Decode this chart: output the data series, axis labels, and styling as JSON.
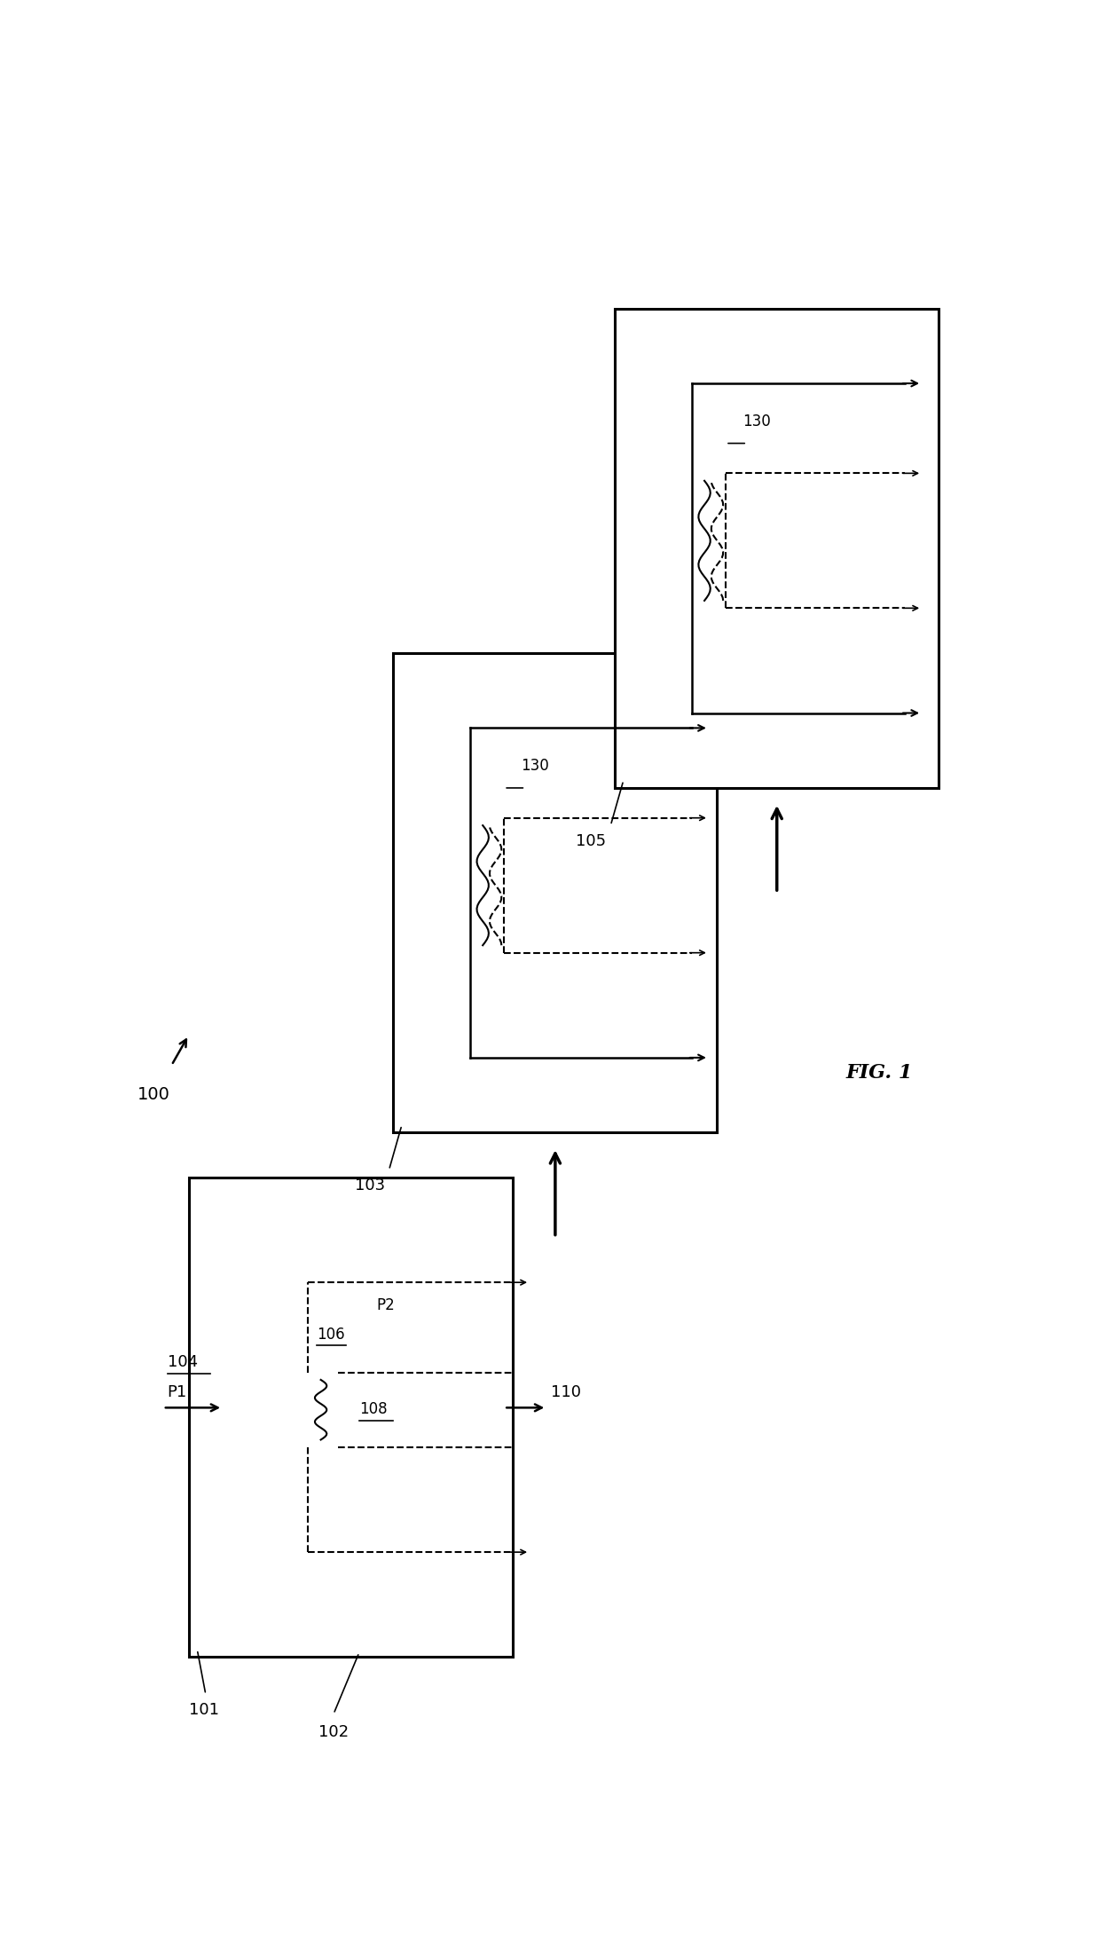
{
  "fig_width": 12.4,
  "fig_height": 21.93,
  "bg_color": "#ffffff",
  "title": "FIG. 1"
}
